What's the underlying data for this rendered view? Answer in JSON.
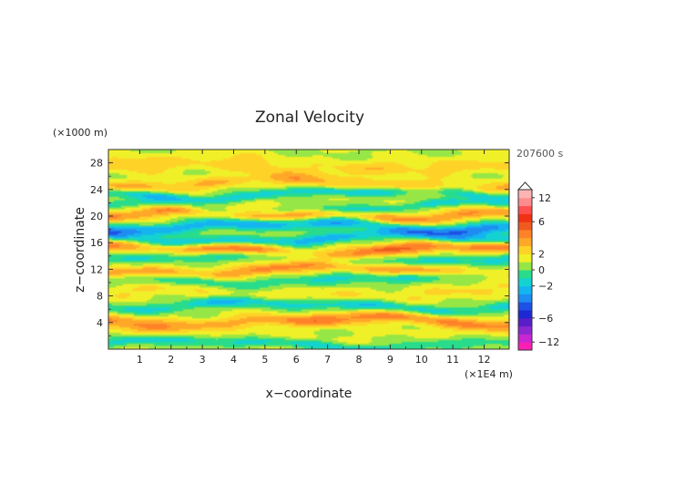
{
  "chart_data": {
    "type": "heatmap",
    "title": "Zonal Velocity",
    "xlabel": "x−coordinate",
    "ylabel": "z−coordinate",
    "x_unit": "(×1E4 m)",
    "y_unit": "(×1000 m)",
    "time_label": "207600 s",
    "xlim": [
      0,
      12.8
    ],
    "ylim": [
      0,
      30
    ],
    "x_ticks": [
      1,
      2,
      3,
      4,
      5,
      6,
      7,
      8,
      9,
      10,
      11,
      12
    ],
    "y_ticks": [
      4,
      8,
      12,
      16,
      20,
      24,
      28
    ],
    "colorbar": {
      "tick_labels": [
        "12",
        "6",
        "2",
        "0",
        "−2",
        "−6",
        "−12"
      ],
      "tick_values": [
        12,
        6,
        2,
        0,
        -2,
        -6,
        -12
      ],
      "levels": [
        -14,
        -12,
        -10,
        -8,
        -6,
        -5,
        -4,
        -3,
        -2,
        -1,
        0,
        1,
        2,
        3,
        4,
        5,
        6,
        8,
        10,
        12,
        14
      ],
      "colors": [
        "#ff1eb4",
        "#c826d2",
        "#8c28d2",
        "#5a1ec8",
        "#1e28d2",
        "#1e50e6",
        "#1e8cf0",
        "#14b4f0",
        "#14d2d2",
        "#28dc8c",
        "#96e646",
        "#f0f028",
        "#ffd228",
        "#ffa828",
        "#ff8228",
        "#f05a1e",
        "#f03214",
        "#ff5050",
        "#ff8c8c",
        "#ffb4b4"
      ]
    },
    "bands": [
      {
        "z": 0.8,
        "amp": -2.0,
        "width": 0.7
      },
      {
        "z": 2.3,
        "amp": 0.3,
        "width": 1.0
      },
      {
        "z": 4.2,
        "amp": 3.0,
        "width": 1.0
      },
      {
        "z": 6.5,
        "amp": -2.5,
        "width": 0.8
      },
      {
        "z": 8.5,
        "amp": 1.0,
        "width": 1.1
      },
      {
        "z": 10.5,
        "amp": -2.0,
        "width": 0.9
      },
      {
        "z": 11.8,
        "amp": 3.0,
        "width": 0.9
      },
      {
        "z": 13.6,
        "amp": -2.0,
        "width": 0.8
      },
      {
        "z": 15.0,
        "amp": 3.5,
        "width": 0.9
      },
      {
        "z": 16.6,
        "amp": -3.0,
        "width": 0.8
      },
      {
        "z": 18.5,
        "amp": -3.5,
        "width": 0.9
      },
      {
        "z": 20.2,
        "amp": 3.0,
        "width": 0.9
      },
      {
        "z": 21.3,
        "amp": -2.0,
        "width": 0.6
      },
      {
        "z": 23.3,
        "amp": -2.5,
        "width": 0.7
      },
      {
        "z": 24.8,
        "amp": 2.0,
        "width": 0.9
      },
      {
        "z": 27.5,
        "amp": 1.5,
        "width": 1.3
      }
    ]
  }
}
